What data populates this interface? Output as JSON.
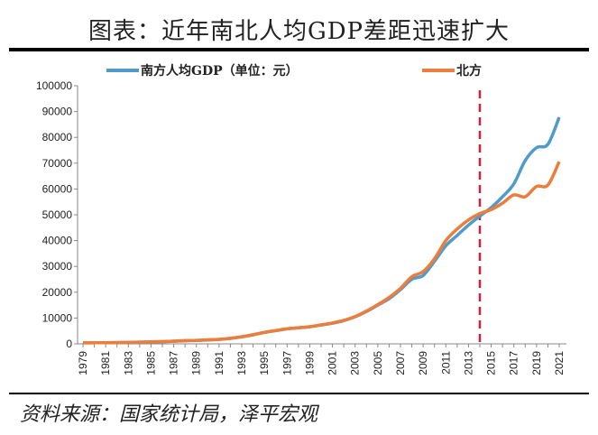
{
  "title": "图表：近年南北人均GDP差距迅速扩大",
  "source": "资料来源：国家统计局，泽平宏观",
  "chart_data": {
    "type": "line",
    "title": "图表：近年南北人均GDP差距迅速扩大",
    "xlabel": "",
    "ylabel": "",
    "ylim": [
      0,
      100000
    ],
    "yticks": [
      "0",
      "10000",
      "20000",
      "30000",
      "40000",
      "50000",
      "60000",
      "70000",
      "80000",
      "90000",
      "100000"
    ],
    "x": [
      1979,
      1980,
      1981,
      1982,
      1983,
      1984,
      1985,
      1986,
      1987,
      1988,
      1989,
      1990,
      1991,
      1992,
      1993,
      1994,
      1995,
      1996,
      1997,
      1998,
      1999,
      2000,
      2001,
      2002,
      2003,
      2004,
      2005,
      2006,
      2007,
      2008,
      2009,
      2010,
      2011,
      2012,
      2013,
      2014,
      2015,
      2016,
      2017,
      2018,
      2019,
      2020,
      2021
    ],
    "xticks": [
      "1979",
      "1981",
      "1983",
      "1985",
      "1987",
      "1989",
      "1991",
      "1993",
      "1995",
      "1997",
      "1999",
      "2001",
      "2003",
      "2005",
      "2007",
      "2009",
      "2011",
      "2013",
      "2015",
      "2017",
      "2019",
      "2021"
    ],
    "grid": false,
    "legend_placement": "top",
    "vline": {
      "x": 2014,
      "color": "#d6203a",
      "style": "dashed"
    },
    "series": [
      {
        "name": "南方人均GDP（单位：元）",
        "color": "#4f9bcb",
        "values": [
          380,
          420,
          450,
          500,
          550,
          650,
          780,
          850,
          1000,
          1200,
          1300,
          1500,
          1700,
          2100,
          2700,
          3500,
          4400,
          5100,
          5800,
          6200,
          6600,
          7300,
          8000,
          9000,
          10500,
          12500,
          15000,
          17500,
          21000,
          25000,
          26500,
          32000,
          38000,
          42000,
          46000,
          49500,
          52800,
          57000,
          62000,
          71000,
          76000,
          77300,
          87800
        ]
      },
      {
        "name": "北方",
        "color": "#ed7d3a",
        "values": [
          380,
          420,
          450,
          500,
          550,
          650,
          800,
          880,
          1050,
          1250,
          1350,
          1550,
          1750,
          2150,
          2750,
          3550,
          4450,
          5150,
          5850,
          6250,
          6650,
          7350,
          8100,
          9100,
          10600,
          12700,
          15200,
          18000,
          21500,
          26000,
          28000,
          33000,
          40000,
          44500,
          48000,
          50500,
          52000,
          54500,
          57700,
          57000,
          61000,
          61500,
          70600
        ]
      }
    ]
  }
}
